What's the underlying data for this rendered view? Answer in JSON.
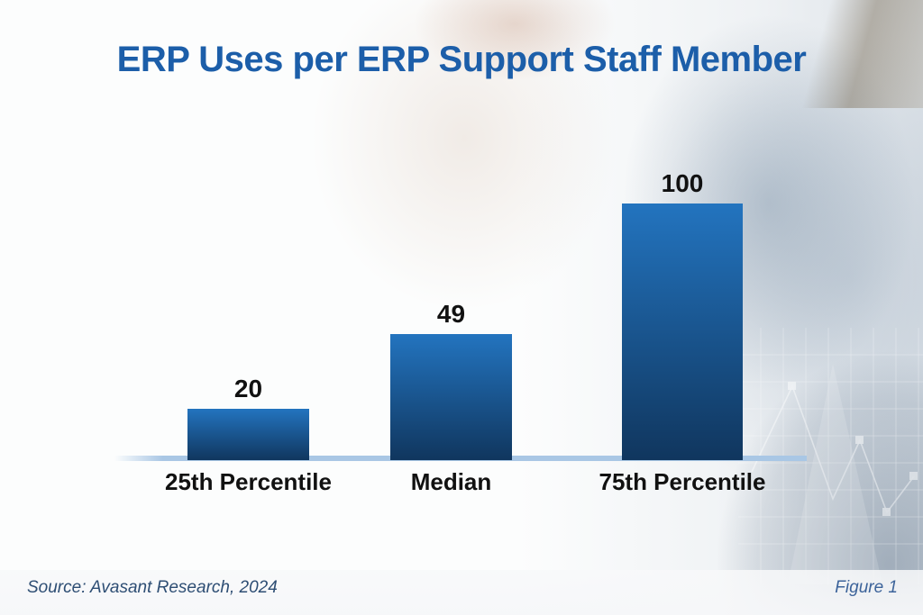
{
  "header": {
    "title": "ERP Uses per ERP Support Staff Member"
  },
  "footer": {
    "source": "Source: Avasant Research, 2024",
    "figure": "Figure 1"
  },
  "colors": {
    "title": "#1c5ea9",
    "bar_gradient_top": "#2374bf",
    "bar_gradient_bottom": "#10365e",
    "baseline": "#a9c7e5",
    "value_label": "#111111",
    "category_label": "#111111",
    "source_text": "#2e4e74",
    "figure_text": "#3c639a"
  },
  "chart_data": {
    "type": "bar",
    "title": "ERP Uses per ERP Support Staff Member",
    "categories": [
      "25th Percentile",
      "Median",
      "75th Percentile"
    ],
    "values": [
      20,
      49,
      100
    ],
    "data_labels": [
      "20",
      "49",
      "100"
    ],
    "xlabel": "",
    "ylabel": "",
    "ylim": [
      0,
      100
    ],
    "grid": false,
    "legend": false,
    "value_labels_position": "above-bars",
    "axis": "single light-blue baseline, no ticks"
  }
}
